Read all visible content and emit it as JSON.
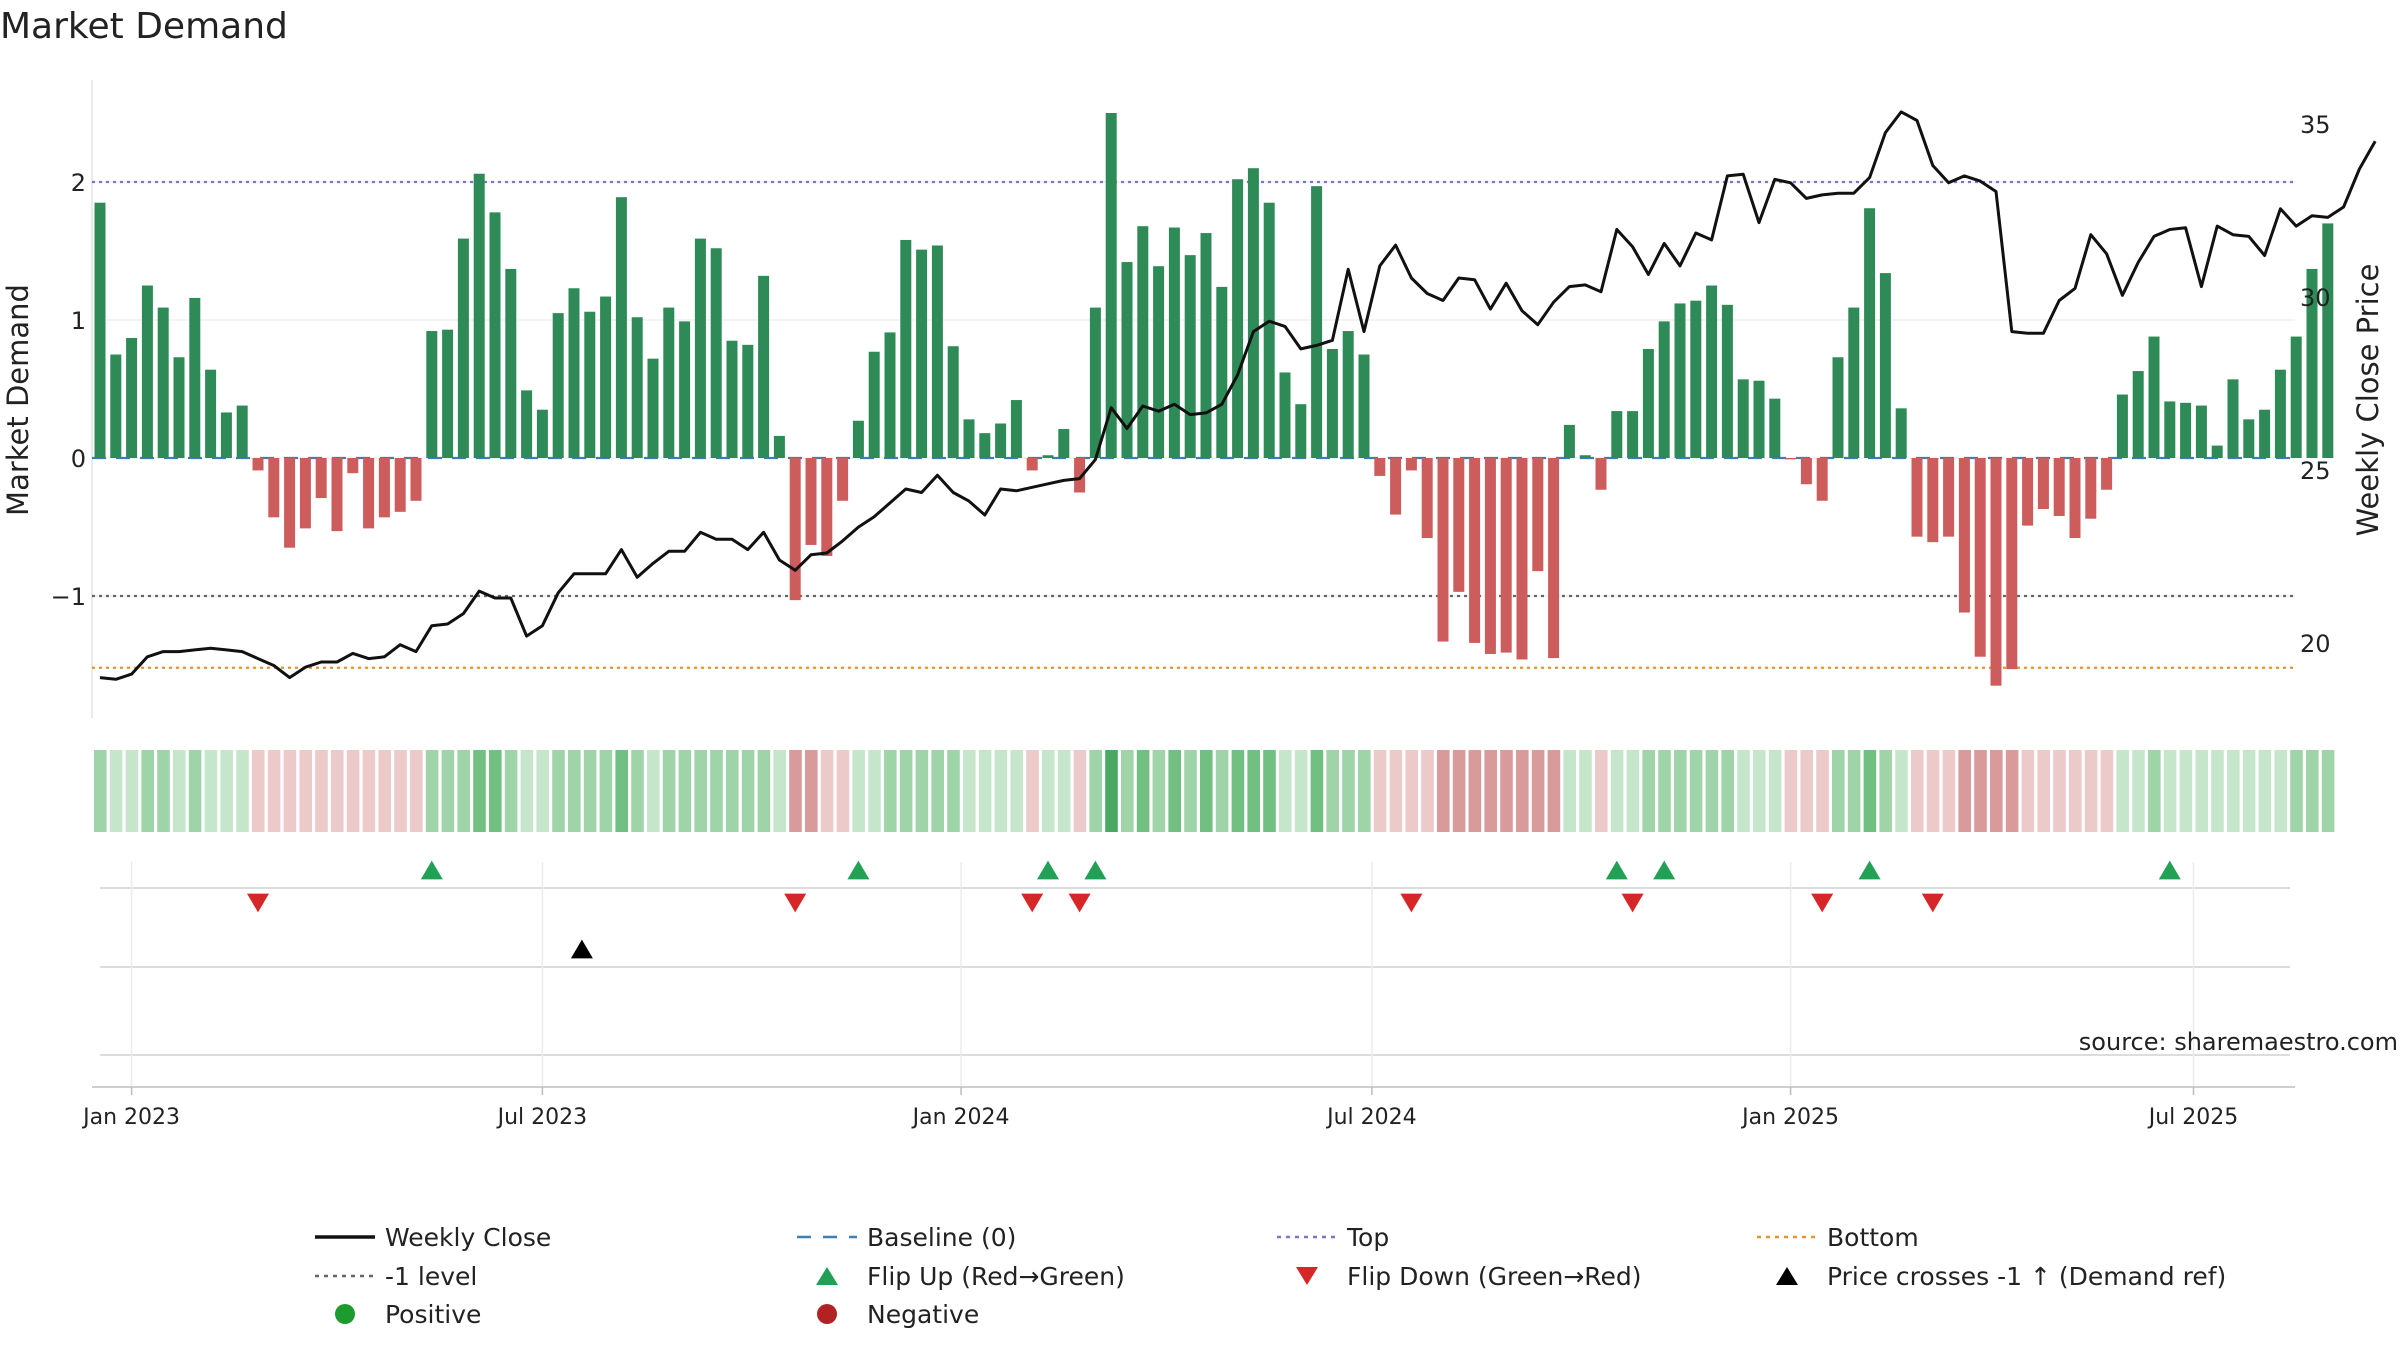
{
  "chart_data": {
    "type": "bar",
    "title": "Market Demand",
    "ylabel": "Market Demand",
    "y2label": "Weekly Close Price",
    "ylim": [
      -1.9,
      2.75
    ],
    "y2lim": [
      18.2,
      36.5
    ],
    "yticks": [
      -1,
      0,
      1,
      2
    ],
    "ytick_labels": [
      "−1",
      "0",
      "1",
      "2"
    ],
    "y2ticks": [
      20,
      25,
      30,
      35
    ],
    "y2tick_labels": [
      "20",
      "25",
      "30",
      "35"
    ],
    "xticks": [
      "Jan 2023",
      "Jul 2023",
      "Jan 2024",
      "Jul 2024",
      "Jan 2025",
      "Jul 2025"
    ],
    "xtick_weeks": [
      2,
      28,
      54.5,
      80.5,
      107,
      132.5
    ],
    "levels": {
      "top": 2.0,
      "baseline": 0.0,
      "minus_one": -1.0,
      "bottom": -1.52
    },
    "demand": [
      1.85,
      0.75,
      0.87,
      1.25,
      1.09,
      0.73,
      1.16,
      0.64,
      0.33,
      0.38,
      -0.09,
      -0.43,
      -0.65,
      -0.51,
      -0.29,
      -0.53,
      -0.11,
      -0.51,
      -0.43,
      -0.39,
      -0.31,
      0.92,
      0.93,
      1.59,
      2.06,
      1.78,
      1.37,
      0.49,
      0.35,
      1.05,
      1.23,
      1.06,
      1.17,
      1.89,
      1.02,
      0.72,
      1.09,
      0.99,
      1.59,
      1.52,
      0.85,
      0.82,
      1.32,
      0.16,
      -1.03,
      -0.63,
      -0.71,
      -0.31,
      0.27,
      0.77,
      0.91,
      1.58,
      1.51,
      1.54,
      0.81,
      0.28,
      0.18,
      0.25,
      0.42,
      -0.09,
      0.02,
      0.21,
      -0.25,
      1.09,
      2.5,
      1.42,
      1.68,
      1.39,
      1.67,
      1.47,
      1.63,
      1.24,
      2.02,
      2.1,
      1.85,
      0.62,
      0.39,
      1.97,
      0.79,
      0.92,
      0.75,
      -0.13,
      -0.41,
      -0.09,
      -0.58,
      -1.33,
      -0.97,
      -1.34,
      -1.42,
      -1.41,
      -1.46,
      -0.82,
      -1.45,
      0.24,
      0.02,
      -0.23,
      0.34,
      0.34,
      0.79,
      0.99,
      1.12,
      1.14,
      1.25,
      1.11,
      0.57,
      0.56,
      0.43,
      -0.01,
      -0.19,
      -0.31,
      0.73,
      1.09,
      1.81,
      1.34,
      0.36,
      -0.57,
      -0.61,
      -0.57,
      -1.12,
      -1.44,
      -1.65,
      -1.53,
      -0.49,
      -0.37,
      -0.42,
      -0.58,
      -0.44,
      -0.23,
      0.46,
      0.63,
      0.88,
      0.41,
      0.4,
      0.38,
      0.09,
      0.57,
      0.28,
      0.35,
      0.64,
      0.88,
      1.37,
      1.7
    ],
    "close": [
      19.0,
      18.95,
      19.1,
      19.6,
      19.75,
      19.75,
      19.8,
      19.85,
      19.8,
      19.75,
      19.55,
      19.35,
      19.0,
      19.3,
      19.45,
      19.45,
      19.7,
      19.55,
      19.6,
      19.95,
      19.75,
      20.5,
      20.55,
      20.85,
      21.5,
      21.3,
      21.3,
      20.2,
      20.5,
      21.45,
      22.0,
      22.0,
      22.0,
      22.7,
      21.9,
      22.3,
      22.65,
      22.65,
      23.2,
      23.0,
      23.0,
      22.7,
      23.2,
      22.4,
      22.1,
      22.55,
      22.6,
      22.95,
      23.35,
      23.65,
      24.05,
      24.45,
      24.35,
      24.85,
      24.35,
      24.1,
      23.7,
      24.45,
      24.4,
      24.5,
      24.6,
      24.7,
      24.75,
      25.3,
      26.8,
      26.2,
      26.85,
      26.7,
      26.9,
      26.6,
      26.65,
      26.9,
      27.75,
      29.0,
      29.3,
      29.15,
      28.5,
      28.6,
      28.75,
      30.8,
      29.0,
      30.9,
      31.5,
      30.55,
      30.1,
      29.9,
      30.55,
      30.5,
      29.65,
      30.4,
      29.6,
      29.2,
      29.85,
      30.3,
      30.35,
      30.15,
      31.95,
      31.45,
      30.65,
      31.55,
      30.9,
      31.85,
      31.65,
      33.5,
      33.55,
      32.15,
      33.4,
      33.3,
      32.85,
      32.95,
      33.0,
      33.0,
      33.45,
      34.75,
      35.35,
      35.1,
      33.8,
      33.3,
      33.5,
      33.35,
      33.05,
      29.0,
      28.95,
      28.95,
      29.9,
      30.25,
      31.8,
      31.25,
      30.05,
      31.0,
      31.75,
      31.95,
      32.0,
      30.3,
      32.05,
      31.8,
      31.75,
      31.2,
      32.55,
      32.05,
      32.35,
      32.3,
      32.6,
      33.7,
      34.5
    ],
    "heat_levels": [
      2,
      1,
      1,
      2,
      2,
      1,
      2,
      1,
      1,
      1,
      -1,
      -1,
      -1,
      -1,
      -1,
      -1,
      -1,
      -1,
      -1,
      -1,
      -1,
      2,
      2,
      2,
      3,
      3,
      2,
      1,
      1,
      2,
      2,
      2,
      2,
      3,
      2,
      1,
      2,
      2,
      2,
      2,
      2,
      2,
      2,
      1,
      -2,
      -2,
      -1,
      -1,
      1,
      1,
      2,
      2,
      2,
      2,
      2,
      1,
      1,
      1,
      1,
      -1,
      1,
      1,
      -1,
      2,
      4,
      2,
      3,
      2,
      3,
      2,
      3,
      2,
      3,
      3,
      3,
      1,
      1,
      3,
      2,
      2,
      2,
      -1,
      -1,
      -1,
      -1,
      -2,
      -2,
      -2,
      -2,
      -2,
      -2,
      -2,
      -2,
      1,
      1,
      -1,
      1,
      1,
      2,
      2,
      2,
      2,
      2,
      2,
      1,
      1,
      1,
      -1,
      -1,
      -1,
      2,
      2,
      3,
      2,
      1,
      -1,
      -1,
      -1,
      -2,
      -2,
      -2,
      -2,
      -1,
      -1,
      -1,
      -1,
      -1,
      -1,
      1,
      1,
      2,
      1,
      1,
      1,
      1,
      1,
      1,
      1,
      1,
      2,
      2,
      2
    ],
    "flip_up_weeks": [
      21,
      48,
      60,
      63,
      96,
      99,
      112,
      131
    ],
    "flip_down_weeks": [
      10,
      44,
      59,
      62,
      83,
      97,
      109,
      116
    ],
    "price_cross_weeks": [
      30.5
    ],
    "source": "source: sharemaestro.com",
    "legend": [
      {
        "label": "Weekly Close",
        "kind": "line",
        "color": "#111111"
      },
      {
        "label": "Baseline (0)",
        "kind": "dashed",
        "color": "#3a7fb5"
      },
      {
        "label": "Top",
        "kind": "dotted",
        "color": "#7b74cf"
      },
      {
        "label": "Bottom",
        "kind": "dotted",
        "color": "#e8912d"
      },
      {
        "label": "-1 level",
        "kind": "dotted",
        "color": "#666666"
      },
      {
        "label": "Flip Up (Red→Green)",
        "kind": "tri-up",
        "color": "#22a055"
      },
      {
        "label": "Flip Down (Green→Red)",
        "kind": "tri-down",
        "color": "#d62728"
      },
      {
        "label": "Price crosses -1 ↑ (Demand ref)",
        "kind": "tri-up",
        "color": "#000000"
      },
      {
        "label": "Positive",
        "kind": "dot",
        "color": "#1e9b2e"
      },
      {
        "label": "Negative",
        "kind": "dot",
        "color": "#b22222"
      }
    ],
    "colors": {
      "positive_bar": "#2e8b57",
      "negative_bar": "#cd5c5c",
      "close_line": "#111111",
      "heat_pos": [
        "#c6e6cc",
        "#9fd4a9",
        "#72bf82",
        "#4aa862"
      ],
      "heat_neg": [
        "#edcaca",
        "#d89a9a"
      ]
    }
  }
}
